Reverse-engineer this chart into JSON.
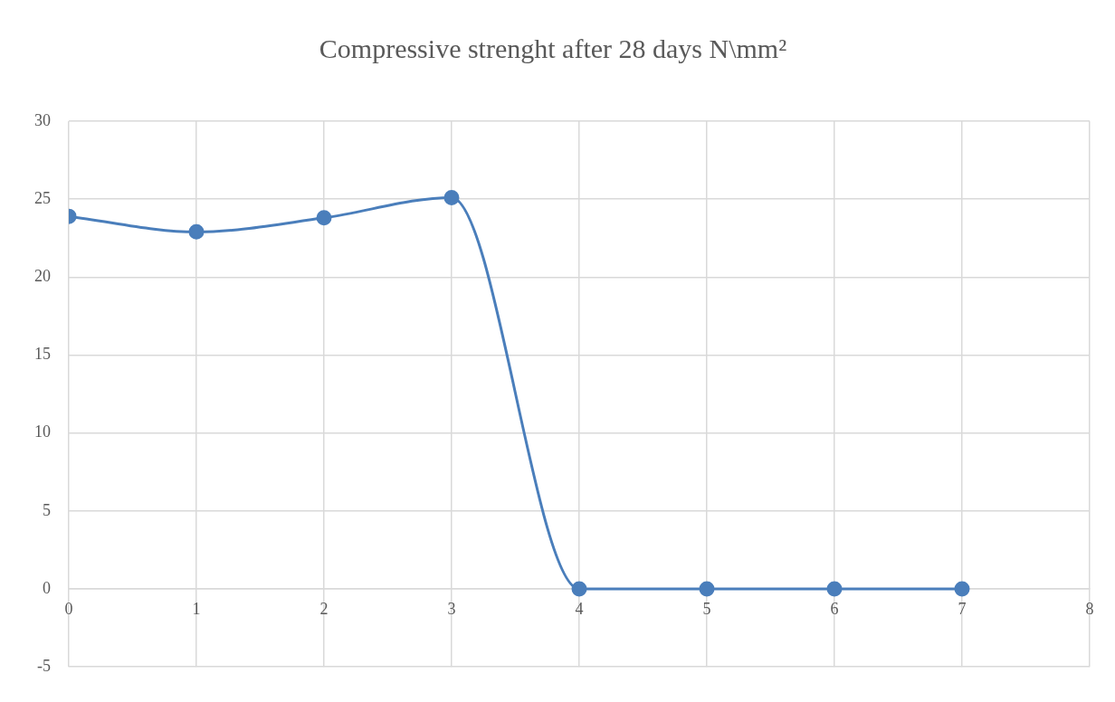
{
  "chart_data": {
    "type": "line",
    "title": "Compressive strenght after 28 days N\\mm²",
    "x": [
      0,
      1,
      2,
      3,
      4,
      5,
      6,
      7
    ],
    "series": [
      {
        "color": "#4a7ebb",
        "values": [
          23.9,
          22.9,
          23.8,
          25.1,
          0,
          0,
          0,
          0
        ]
      }
    ],
    "xlim": [
      0,
      8
    ],
    "xticks": [
      0,
      1,
      2,
      3,
      4,
      5,
      6,
      7,
      8
    ],
    "ylim": [
      -5,
      30
    ],
    "yticks": [
      -5,
      0,
      5,
      10,
      15,
      20,
      25,
      30
    ],
    "grid": true,
    "marker": "circle",
    "line_style": "solid"
  }
}
